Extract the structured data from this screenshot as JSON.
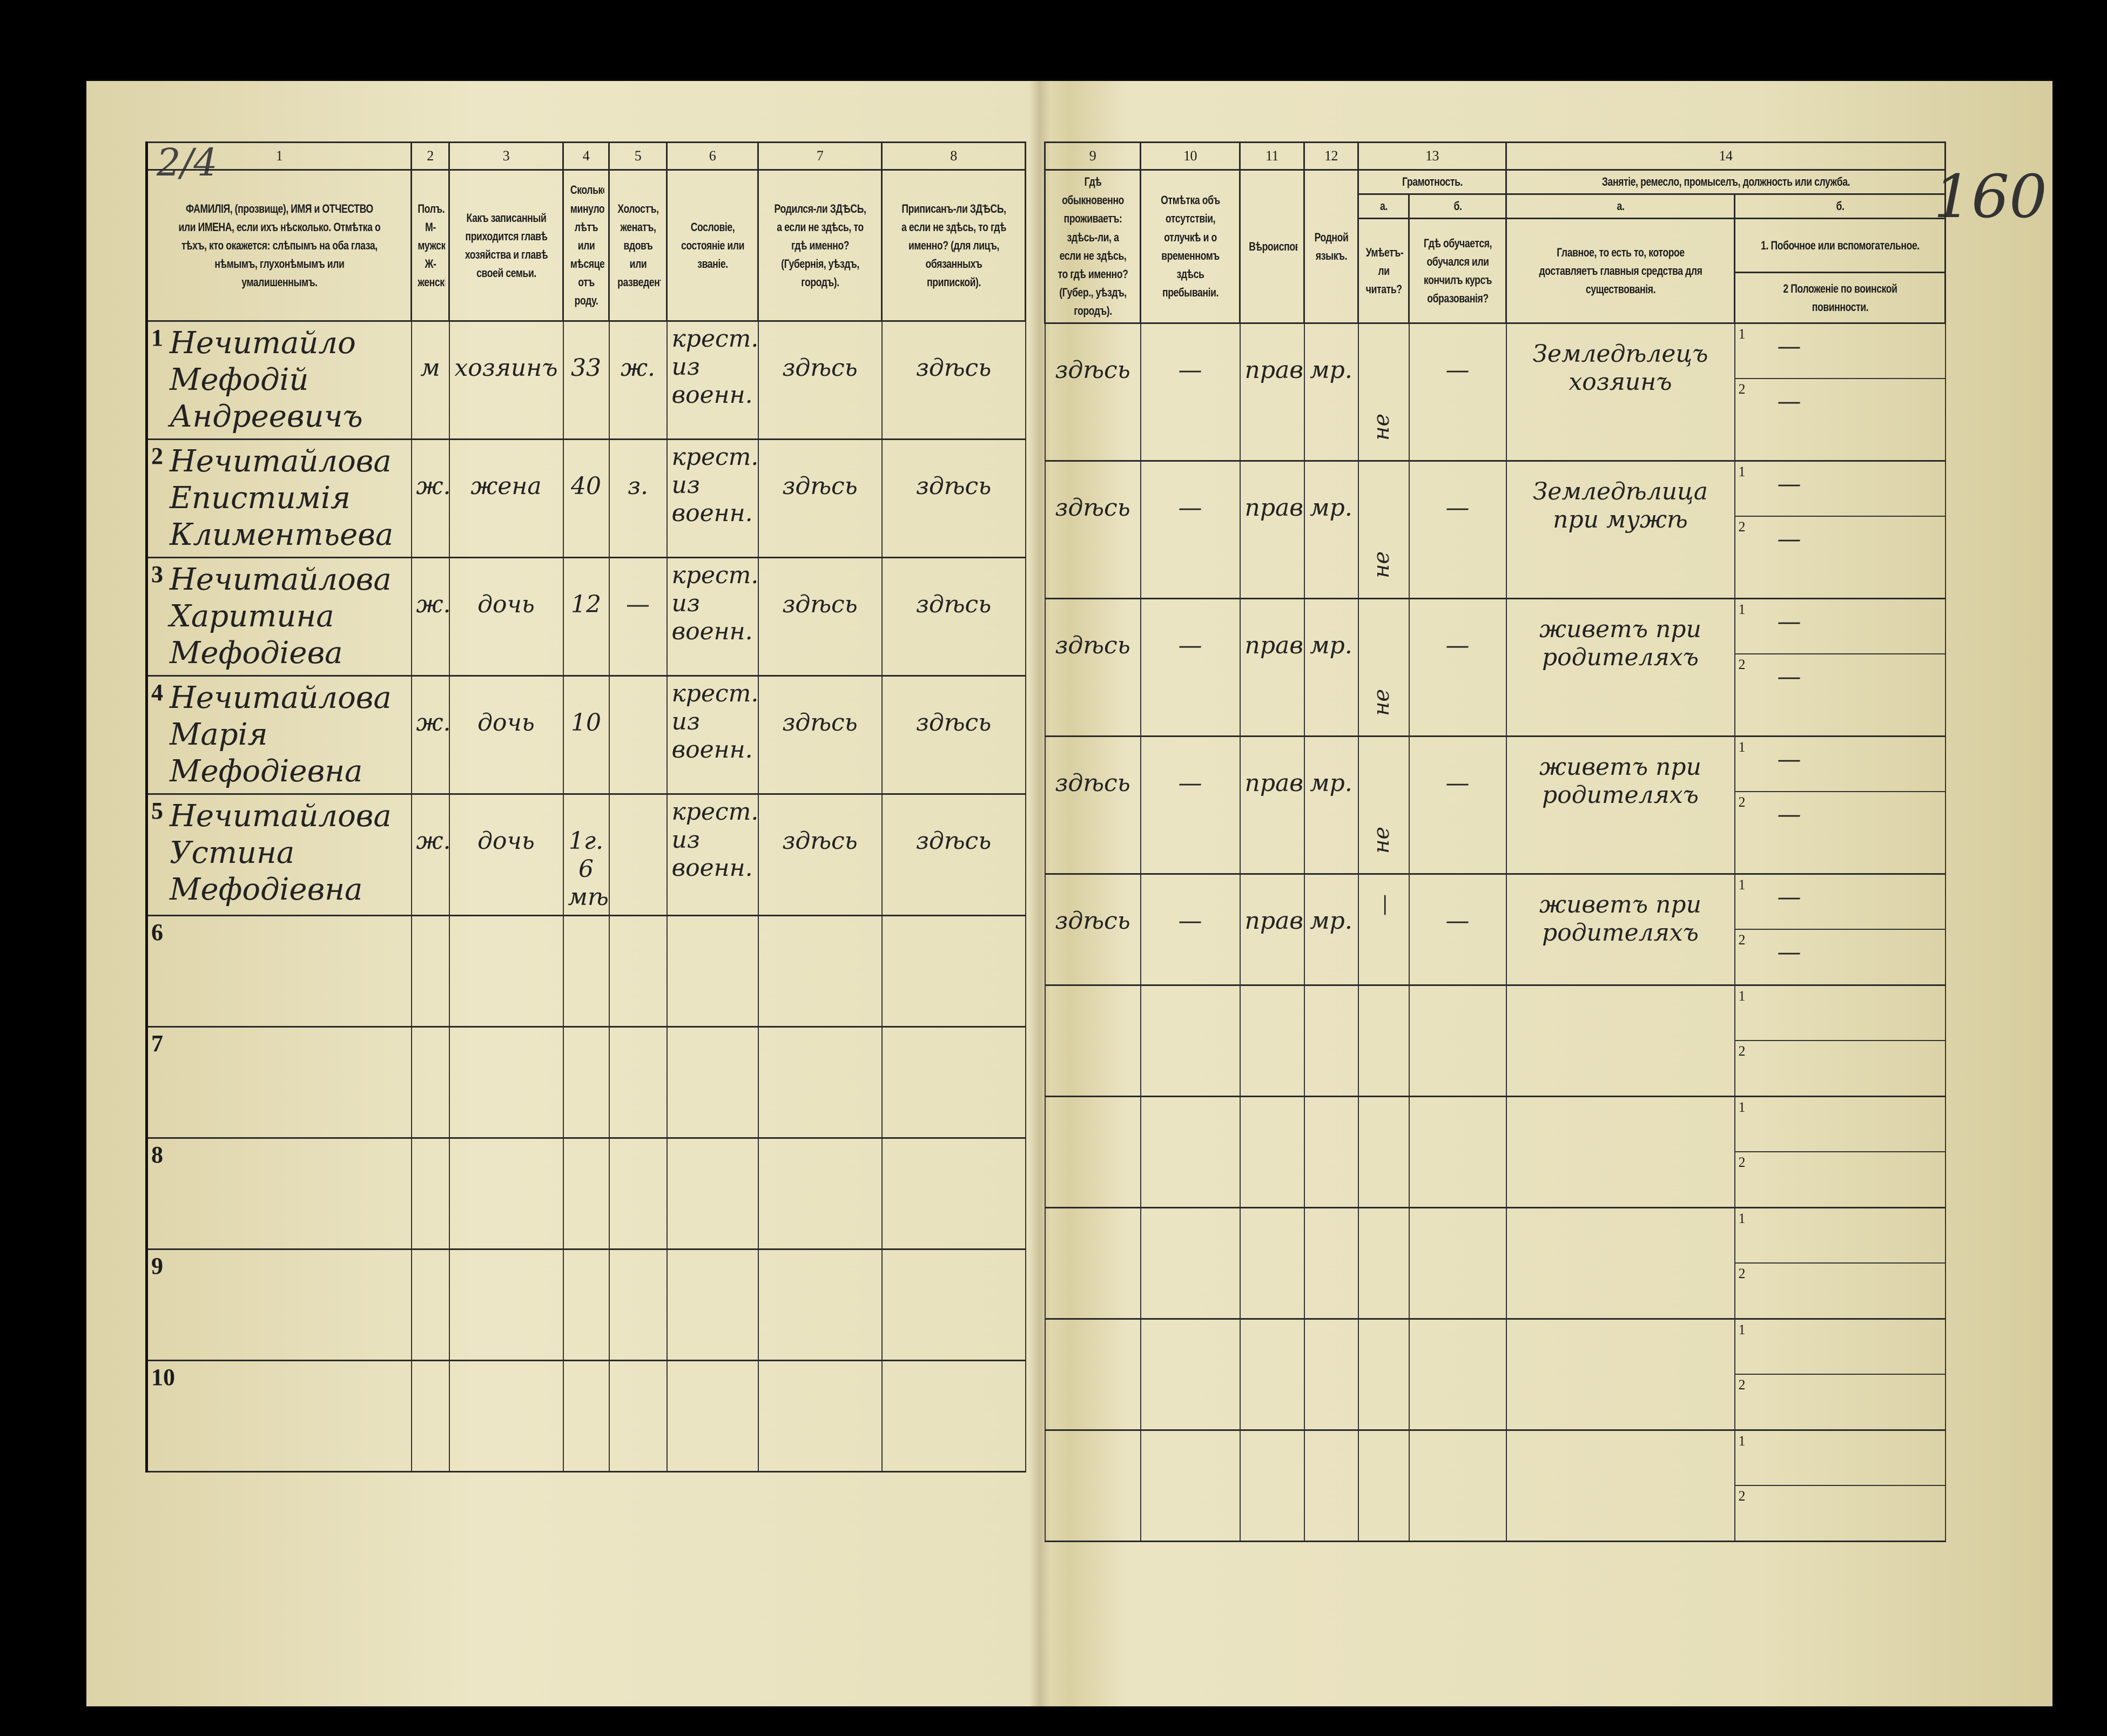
{
  "page_number": "160",
  "corner_mark": "2/4",
  "left_headers": [
    {
      "num": "1",
      "text": "ФАМИЛІЯ, (прозвище), ИМЯ и ОТЧЕСТВО или ИМЕНА, если ихъ нѣсколько. Отмѣтка о тѣхъ, кто окажется: слѣпымъ на оба глаза, нѣмымъ, глухонѣмымъ или умалишеннымъ."
    },
    {
      "num": "2",
      "text": "Полъ. М-мужской. Ж-женскій."
    },
    {
      "num": "3",
      "text": "Какъ записанный приходится главѣ хозяйства и главѣ своей семьи."
    },
    {
      "num": "4",
      "text": "Сколько минуло лѣтъ или мѣсяцевъ отъ роду."
    },
    {
      "num": "5",
      "text": "Холостъ, женатъ, вдовъ или разведенъ."
    },
    {
      "num": "6",
      "text": "Сословіе, состояніе или званіе."
    },
    {
      "num": "7",
      "text": "Родился-ли ЗДѢСЬ, а если не здѣсь, то гдѣ именно? (Губернія, уѣздъ, городъ)."
    },
    {
      "num": "8",
      "text": "Приписанъ-ли ЗДѢСЬ, а если не здѣсь, то гдѣ именно? (для лицъ, обязанныхъ припиской)."
    }
  ],
  "right_headers": {
    "col9": {
      "num": "9",
      "text": "Гдѣ обыкновенно проживаетъ: здѣсь-ли, а если не здѣсь, то гдѣ именно? (Губер., уѣздъ, городъ)."
    },
    "col10": {
      "num": "10",
      "text": "Отмѣтка объ отсутствіи, отлучкѣ и о временномъ здѣсь пребываніи."
    },
    "col11": {
      "num": "11",
      "text": "Вѣроисповѣданіе."
    },
    "col12": {
      "num": "12",
      "text": "Родной языкъ."
    },
    "col13": {
      "num": "13",
      "title": "Грамотность.",
      "a_label": "а.",
      "a_text": "Умѣетъ-ли читать?",
      "b_label": "б.",
      "b_text": "Гдѣ обучается, обучался или кончилъ курсъ образованія?"
    },
    "col14": {
      "num": "14",
      "title": "Занятіе, ремесло, промыселъ, должность или служба.",
      "a_label": "а.",
      "a_text": "Главное, то есть то, которое доставляетъ главныя средства для существованія.",
      "b_label": "б.",
      "b_text_1": "1. Побочное или вспомогательное.",
      "b_text_2": "2 Положеніе по воинской повинности."
    }
  },
  "rows": [
    {
      "n": "1",
      "name": "Нечитайло Мефодій Андреевичъ",
      "sex": "м",
      "relation": "хозяинъ",
      "age": "33",
      "marital": "ж.",
      "estate": "крест. из военн.",
      "born": "здѣсь",
      "registered": "здѣсь",
      "resides": "здѣсь",
      "absence": "—",
      "religion": "правосл.",
      "language": "мр.",
      "literate": "не умѣетъ",
      "education": "—",
      "occupation": "Земледѣлецъ хозяинъ",
      "aux_1": "—",
      "aux_2": "—"
    },
    {
      "n": "2",
      "name": "Нечитайлова Епистимія Климентьева",
      "sex": "ж.",
      "relation": "жена",
      "age": "40",
      "marital": "з.",
      "estate": "крест. из военн.",
      "born": "здѣсь",
      "registered": "здѣсь",
      "resides": "здѣсь",
      "absence": "—",
      "religion": "правосл.",
      "language": "мр.",
      "literate": "не умѣетъ",
      "education": "—",
      "occupation": "Земледѣлица при мужѣ",
      "aux_1": "—",
      "aux_2": "—"
    },
    {
      "n": "3",
      "name": "Нечитайлова Харитина Мефодіева",
      "sex": "ж.",
      "relation": "дочь",
      "age": "12",
      "marital": "—",
      "estate": "крест. из военн.",
      "born": "здѣсь",
      "registered": "здѣсь",
      "resides": "здѣсь",
      "absence": "—",
      "religion": "правосл.",
      "language": "мр.",
      "literate": "не умѣетъ",
      "education": "—",
      "occupation": "живетъ при родителяхъ",
      "aux_1": "—",
      "aux_2": "—"
    },
    {
      "n": "4",
      "name": "Нечитайлова Марія Мефодіевна",
      "sex": "ж.",
      "relation": "дочь",
      "age": "10",
      "marital": "",
      "estate": "крест. из военн.",
      "born": "здѣсь",
      "registered": "здѣсь",
      "resides": "здѣсь",
      "absence": "—",
      "religion": "правосл.",
      "language": "мр.",
      "literate": "не умѣетъ",
      "education": "—",
      "occupation": "живетъ при родителяхъ",
      "aux_1": "—",
      "aux_2": "—"
    },
    {
      "n": "5",
      "name": "Нечитайлова Устина Мефодіевна",
      "sex": "ж.",
      "relation": "дочь",
      "age": "1г. 6 мѣс.",
      "marital": "",
      "estate": "крест. из военн.",
      "born": "здѣсь",
      "registered": "здѣсь",
      "resides": "здѣсь",
      "absence": "—",
      "religion": "правосл.",
      "language": "мр.",
      "literate": "—",
      "education": "—",
      "occupation": "живетъ при родителяхъ",
      "aux_1": "—",
      "aux_2": "—"
    },
    {
      "n": "6"
    },
    {
      "n": "7"
    },
    {
      "n": "8"
    },
    {
      "n": "9"
    },
    {
      "n": "10"
    }
  ],
  "sub_labels": {
    "one": "1",
    "two": "2"
  }
}
